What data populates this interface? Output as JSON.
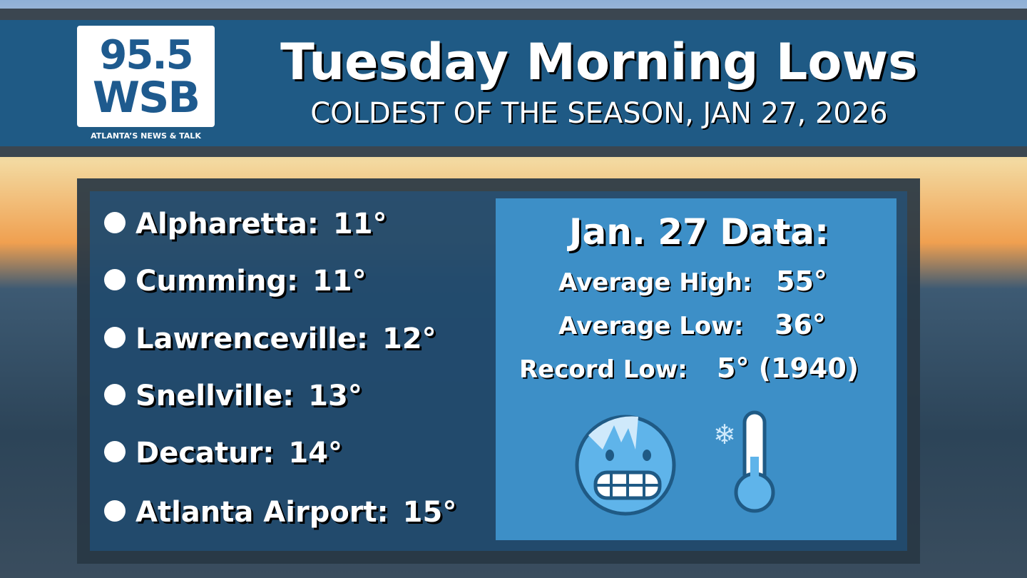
{
  "logo": {
    "number": "95.5",
    "name": "WSB",
    "tagline": "ATLANTA’S NEWS & TALK"
  },
  "header": {
    "title": "Tuesday Morning Lows",
    "subtitle": "COLDEST OF THE SEASON, JAN 27, 2026"
  },
  "lows": [
    {
      "city": "Alpharetta:",
      "temp": "11°"
    },
    {
      "city": "Cumming:",
      "temp": "11°"
    },
    {
      "city": "Lawrenceville:",
      "temp": "12°"
    },
    {
      "city": "Snellville:",
      "temp": "13°"
    },
    {
      "city": "Decatur:",
      "temp": "14°"
    },
    {
      "city": "Atlanta Airport:",
      "temp": "15°"
    }
  ],
  "panel": {
    "title": "Jan. 27 Data:",
    "rows": [
      {
        "label": "Average High:",
        "value": "55°"
      },
      {
        "label": "Average Low:",
        "value": "36°"
      },
      {
        "label": "Record Low:",
        "value": "5° (1940)"
      }
    ]
  }
}
